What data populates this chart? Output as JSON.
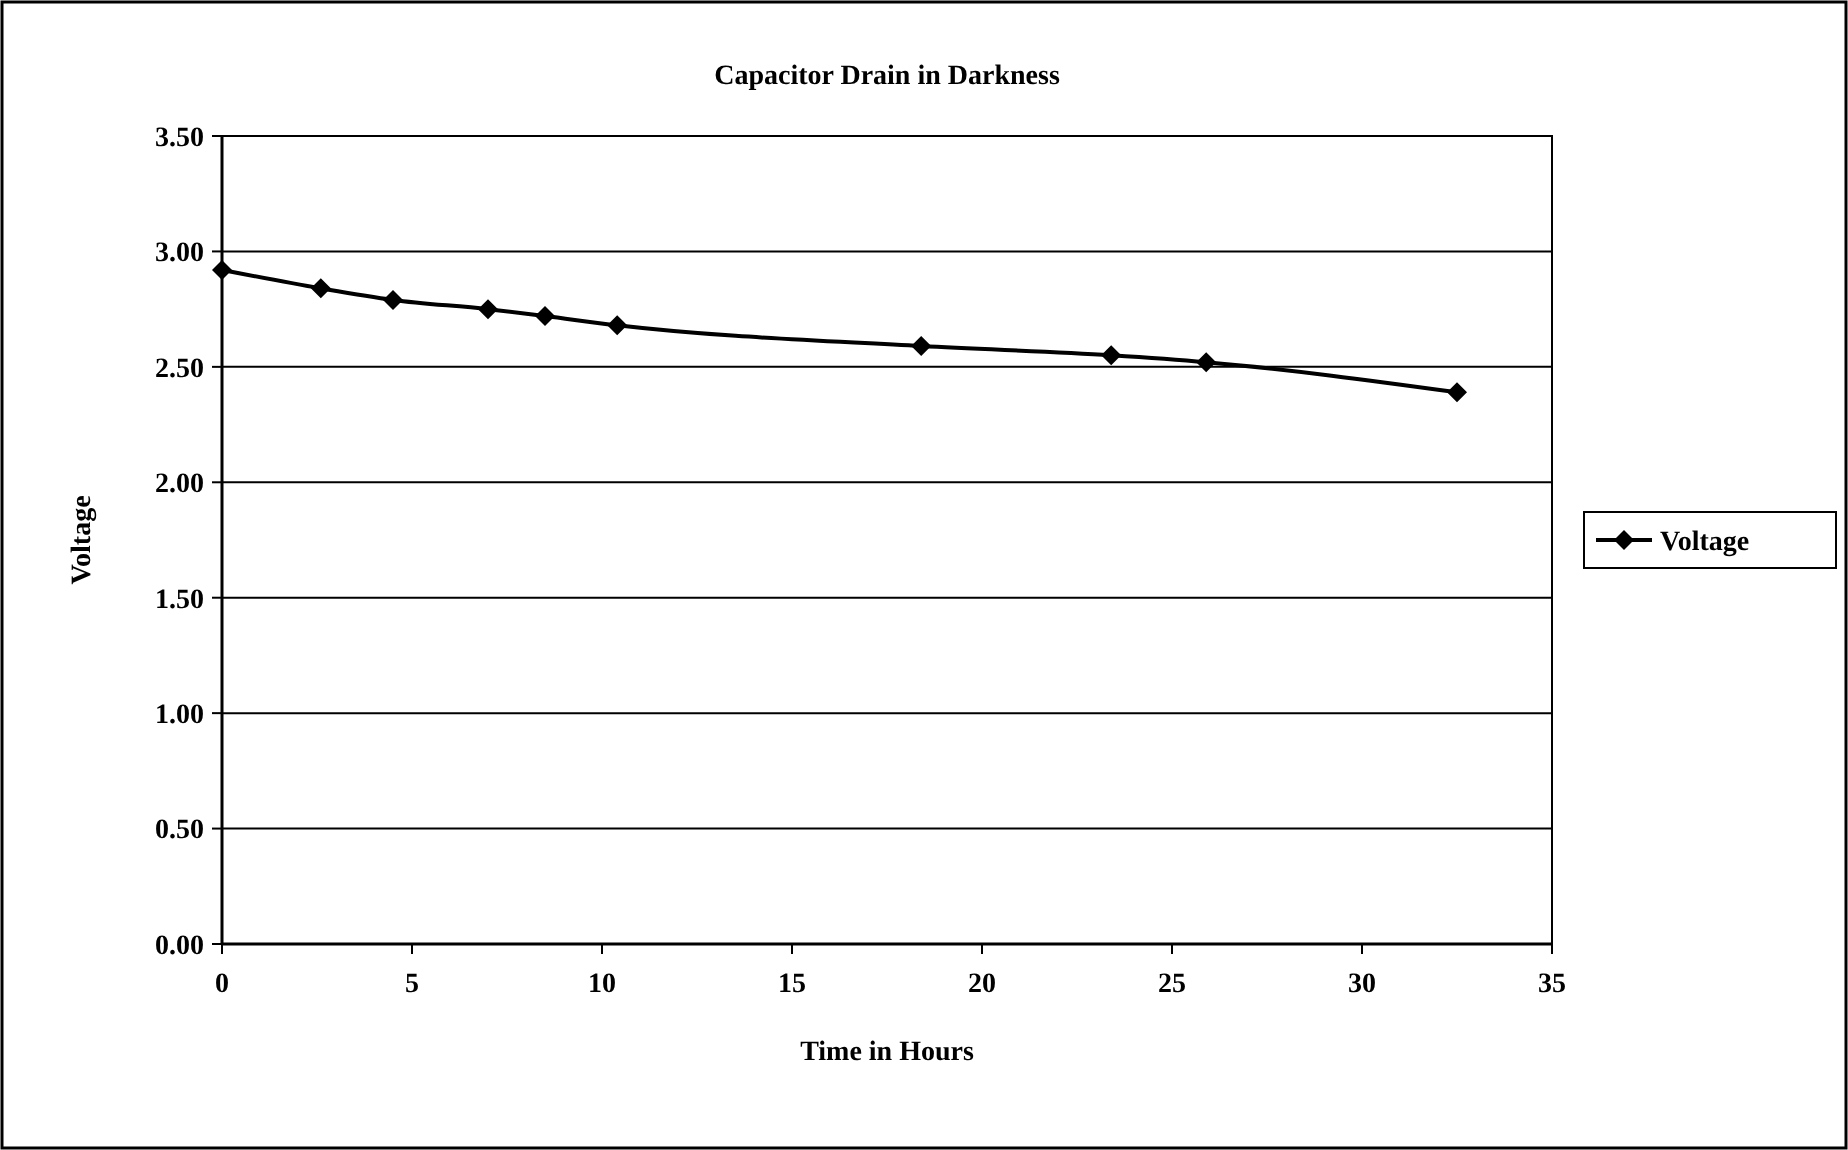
{
  "chart_data": {
    "type": "line",
    "title": "Capacitor Drain in Darkness",
    "xlabel": "Time in Hours",
    "ylabel": "Voltage",
    "x": [
      0,
      2.6,
      4.5,
      7.0,
      8.5,
      10.4,
      18.4,
      23.4,
      25.9,
      32.5
    ],
    "series": [
      {
        "name": "Voltage",
        "color": "#000000",
        "values": [
          2.92,
          2.84,
          2.79,
          2.75,
          2.72,
          2.68,
          2.59,
          2.55,
          2.52,
          2.39
        ]
      }
    ],
    "xlim": [
      0,
      35
    ],
    "xticks": [
      0,
      5,
      10,
      15,
      20,
      25,
      30,
      35
    ],
    "ylim": [
      0,
      3.5
    ],
    "yticks": [
      {
        "value": 0,
        "label": "0.00"
      },
      {
        "value": 0.5,
        "label": "0.50"
      },
      {
        "value": 1,
        "label": "1.00"
      },
      {
        "value": 1.5,
        "label": "1.50"
      },
      {
        "value": 2,
        "label": "2.00"
      },
      {
        "value": 2.5,
        "label": "2.50"
      },
      {
        "value": 3,
        "label": "3.00"
      },
      {
        "value": 3.5,
        "label": "3.50"
      }
    ],
    "grid": "y",
    "legend": "right",
    "marker": "diamond",
    "line_style": "solid"
  }
}
